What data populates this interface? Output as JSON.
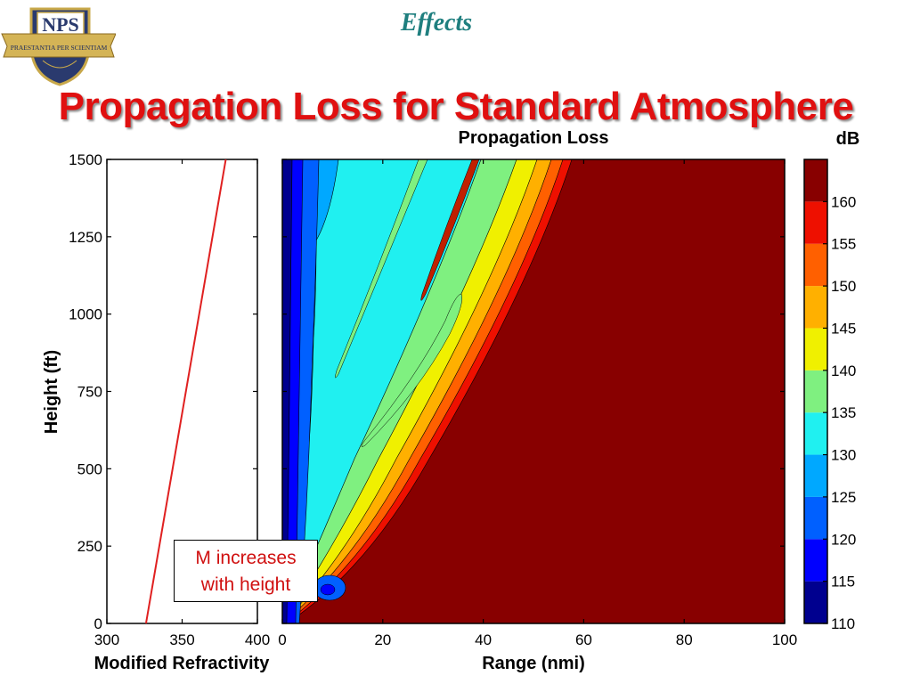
{
  "slide": {
    "heading": "Effects",
    "title": "Propagation Loss for Standard Atmosphere",
    "logo_text": "NPS",
    "logo_motto": "PRAESTANTIA PER SCIENTIAM"
  },
  "annotation": {
    "line1": "M  increases",
    "line2": "with height"
  },
  "chart_data": [
    {
      "type": "line",
      "xlabel": "Modified Refractivity",
      "ylabel": "Height (ft)",
      "xlim": [
        300,
        400
      ],
      "ylim": [
        0,
        1500
      ],
      "x_ticks": [
        300,
        350,
        400
      ],
      "y_ticks": [
        0,
        250,
        500,
        750,
        1000,
        1250,
        1500
      ],
      "series": [
        {
          "color": "#e02020",
          "points": [
            [
              326,
              0
            ],
            [
              379,
              1500
            ]
          ]
        }
      ]
    },
    {
      "type": "heatmap",
      "title": "Propagation Loss",
      "xlabel": "Range (nmi)",
      "xlim": [
        0,
        100
      ],
      "ylim": [
        0,
        1500
      ],
      "x_ticks": [
        0,
        20,
        40,
        60,
        80,
        100
      ],
      "colorbar_label": "dB",
      "colorbar_ticks": [
        110,
        115,
        120,
        125,
        130,
        135,
        140,
        145,
        150,
        155,
        160
      ],
      "levels": [
        {
          "min": 110,
          "max": 115,
          "color": "#00008f"
        },
        {
          "min": 115,
          "max": 120,
          "color": "#0000ff"
        },
        {
          "min": 120,
          "max": 125,
          "color": "#0060ff"
        },
        {
          "min": 125,
          "max": 130,
          "color": "#00a8ff"
        },
        {
          "min": 130,
          "max": 135,
          "color": "#20f0f0"
        },
        {
          "min": 135,
          "max": 140,
          "color": "#7ff080"
        },
        {
          "min": 140,
          "max": 145,
          "color": "#f0f000"
        },
        {
          "min": 145,
          "max": 150,
          "color": "#ffb000"
        },
        {
          "min": 150,
          "max": 155,
          "color": "#ff6000"
        },
        {
          "min": 155,
          "max": 160,
          "color": "#ee1000"
        },
        {
          "min": 160,
          "max": 165,
          "color": "#880000"
        }
      ]
    }
  ]
}
